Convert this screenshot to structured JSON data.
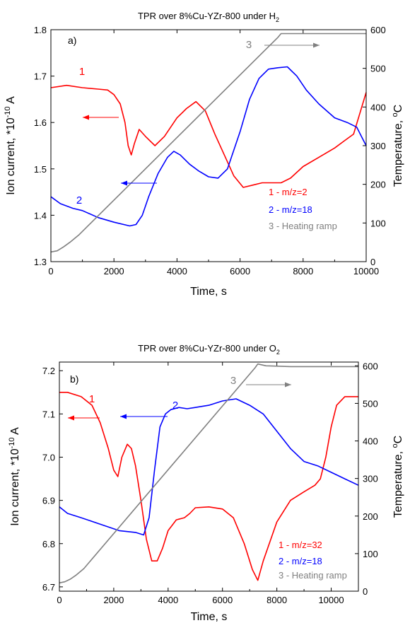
{
  "colors": {
    "red": "#ff0000",
    "blue": "#0000ff",
    "gray": "#808080",
    "black": "#000000"
  },
  "chart_data": [
    {
      "type": "line",
      "panel": "a)",
      "title_main": "TPR over 8%Cu-YZr-800 under H",
      "title_sub": "2",
      "xlabel": "Time, s",
      "ylabel": "Ion current, *10",
      "ylabel_exp": "-10",
      "ylabel_unit": " A",
      "y2label": "Temperature, ",
      "y2label_unit": "C",
      "xlim": [
        0,
        10000
      ],
      "ylim": [
        1.3,
        1.8
      ],
      "y2lim": [
        0,
        600
      ],
      "xticks": [
        "0",
        "2000",
        "4000",
        "6000",
        "8000",
        "10000"
      ],
      "yticks": [
        "1.3",
        "1.4",
        "1.5",
        "1.6",
        "1.7",
        "1.8"
      ],
      "y2ticks": [
        "0",
        "100",
        "200",
        "300",
        "400",
        "500",
        "600"
      ],
      "legend": [
        "1 - m/z=2",
        "2 - m/z=18",
        "3 - Heating ramp"
      ],
      "curve_labels": [
        "1",
        "2",
        "3"
      ],
      "series": [
        {
          "name": "1 - m/z=2",
          "axis": "left",
          "x": [
            0,
            500,
            1000,
            1500,
            1800,
            2000,
            2200,
            2350,
            2450,
            2550,
            2650,
            2800,
            3000,
            3300,
            3600,
            4000,
            4300,
            4600,
            4900,
            5200,
            5500,
            5800,
            6100,
            6400,
            6700,
            7000,
            7300,
            7600,
            8000,
            8500,
            9000,
            9300,
            9600,
            9800,
            10000
          ],
          "y": [
            1.675,
            1.68,
            1.675,
            1.672,
            1.67,
            1.66,
            1.64,
            1.6,
            1.55,
            1.53,
            1.555,
            1.585,
            1.57,
            1.55,
            1.57,
            1.61,
            1.63,
            1.645,
            1.625,
            1.575,
            1.53,
            1.485,
            1.46,
            1.465,
            1.47,
            1.47,
            1.47,
            1.48,
            1.505,
            1.525,
            1.545,
            1.56,
            1.575,
            1.62,
            1.665
          ]
        },
        {
          "name": "2 - m/z=18",
          "axis": "left",
          "x": [
            0,
            300,
            700,
            1000,
            1500,
            2000,
            2500,
            2700,
            2900,
            3100,
            3400,
            3700,
            3900,
            4100,
            4400,
            4700,
            5000,
            5300,
            5600,
            6000,
            6300,
            6600,
            6900,
            7200,
            7500,
            7800,
            8100,
            8500,
            9000,
            9400,
            9700,
            10000
          ],
          "y": [
            1.44,
            1.425,
            1.415,
            1.41,
            1.395,
            1.385,
            1.377,
            1.38,
            1.4,
            1.44,
            1.49,
            1.525,
            1.538,
            1.53,
            1.51,
            1.495,
            1.483,
            1.48,
            1.5,
            1.58,
            1.65,
            1.695,
            1.715,
            1.718,
            1.72,
            1.7,
            1.67,
            1.64,
            1.61,
            1.6,
            1.59,
            1.55
          ]
        },
        {
          "name": "3 - Heating ramp",
          "axis": "right",
          "x": [
            0,
            200,
            400,
            600,
            900,
            7200,
            7300,
            7600,
            8500,
            10000
          ],
          "y": [
            25,
            28,
            38,
            50,
            70,
            580,
            590,
            590,
            590,
            590
          ]
        }
      ]
    },
    {
      "type": "line",
      "panel": "b)",
      "title_main": "TPR over 8%Cu-YZr-800 under O",
      "title_sub": "2",
      "xlabel": "Time, s",
      "ylabel": "Ion current, *10",
      "ylabel_exp": "-10",
      "ylabel_unit": " A",
      "y2label": "Temperature, ",
      "y2label_unit": "C",
      "xlim": [
        0,
        11000
      ],
      "ylim": [
        6.69,
        7.22
      ],
      "y2lim": [
        0,
        610
      ],
      "xticks": [
        "0",
        "2000",
        "4000",
        "6000",
        "8000",
        "10000"
      ],
      "yticks": [
        "6.7",
        "6.8",
        "6.9",
        "7.0",
        "7.1",
        "7.2"
      ],
      "y2ticks": [
        "0",
        "100",
        "200",
        "300",
        "400",
        "500",
        "600"
      ],
      "legend": [
        "1 - m/z=32",
        "2 - m/z=18",
        "3 - Heating ramp"
      ],
      "curve_labels": [
        "1",
        "2",
        "3"
      ],
      "series": [
        {
          "name": "1 - m/z=32",
          "axis": "left",
          "x": [
            0,
            300,
            800,
            1200,
            1500,
            1800,
            2000,
            2150,
            2300,
            2500,
            2650,
            2800,
            3000,
            3200,
            3400,
            3600,
            3800,
            4000,
            4300,
            4600,
            4800,
            5000,
            5500,
            6000,
            6400,
            6800,
            7100,
            7300,
            7500,
            8000,
            8500,
            9000,
            9400,
            9600,
            9800,
            10000,
            10200,
            10500,
            11000
          ],
          "y": [
            7.15,
            7.15,
            7.14,
            7.12,
            7.08,
            7.02,
            6.97,
            6.955,
            7.0,
            7.03,
            7.02,
            6.98,
            6.9,
            6.81,
            6.76,
            6.76,
            6.79,
            6.83,
            6.855,
            6.86,
            6.87,
            6.883,
            6.885,
            6.88,
            6.86,
            6.8,
            6.74,
            6.715,
            6.76,
            6.85,
            6.9,
            6.92,
            6.935,
            6.95,
            7.0,
            7.07,
            7.12,
            7.14,
            7.14
          ]
        },
        {
          "name": "2 - m/z=18",
          "axis": "left",
          "x": [
            0,
            300,
            800,
            1500,
            2200,
            2800,
            3100,
            3300,
            3500,
            3700,
            3900,
            4100,
            4400,
            4700,
            5000,
            5500,
            6000,
            6500,
            7000,
            7500,
            8000,
            8500,
            9000,
            9500,
            10000,
            10500,
            11000
          ],
          "y": [
            6.885,
            6.87,
            6.86,
            6.845,
            6.83,
            6.826,
            6.82,
            6.86,
            6.97,
            7.07,
            7.1,
            7.11,
            7.115,
            7.112,
            7.115,
            7.12,
            7.13,
            7.135,
            7.12,
            7.1,
            7.06,
            7.02,
            6.99,
            6.98,
            6.965,
            6.95,
            6.935
          ]
        },
        {
          "name": "3 - Heating ramp",
          "axis": "right",
          "x": [
            0,
            200,
            400,
            600,
            900,
            7200,
            7300,
            7600,
            8500,
            11000
          ],
          "y": [
            22,
            25,
            32,
            42,
            60,
            595,
            605,
            600,
            598,
            598
          ]
        }
      ]
    }
  ]
}
